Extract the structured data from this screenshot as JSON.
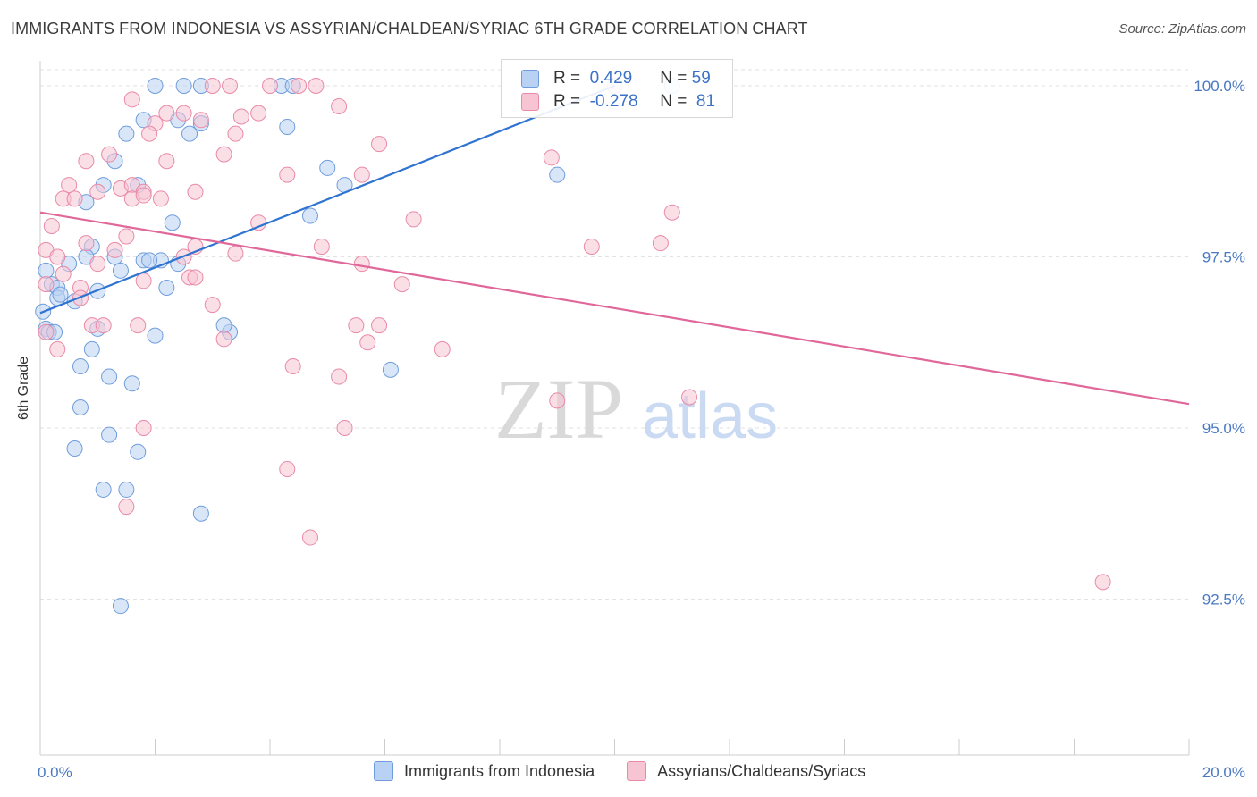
{
  "title": "IMMIGRANTS FROM INDONESIA VS ASSYRIAN/CHALDEAN/SYRIAC 6TH GRADE CORRELATION CHART",
  "source": "Source: ZipAtlas.com",
  "watermark": {
    "zip": "ZIP",
    "atlas": "atlas"
  },
  "legend": {
    "rows": [
      {
        "r_label": "R =",
        "r_value": "0.429",
        "n_label": "N =",
        "n_value": "59"
      },
      {
        "r_label": "R =",
        "r_value": "-0.278",
        "n_label": "N =",
        "n_value": "81"
      }
    ]
  },
  "colors": {
    "blue_fill": "#b9d1f3",
    "blue_stroke": "#6f9ddc",
    "blue_line": "#2f74d0",
    "pink_fill": "#f7c4d3",
    "pink_stroke": "#e98aa8",
    "pink_line": "#e0679a",
    "tick_label": "#4a78c2"
  },
  "chart_data": {
    "type": "scatter",
    "title": "IMMIGRANTS FROM INDONESIA VS ASSYRIAN/CHALDEAN/SYRIAC 6TH GRADE CORRELATION CHART",
    "xlabel": "",
    "ylabel": "6th Grade",
    "xlim": [
      0,
      20
    ],
    "ylim": [
      90.2,
      100.7
    ],
    "x_tick_labels": [
      {
        "value": 0,
        "label": "0.0%"
      },
      {
        "value": 20,
        "label": "20.0%"
      }
    ],
    "y_tick_labels": [
      {
        "value": 100.0,
        "label": "100.0%"
      },
      {
        "value": 97.5,
        "label": "97.5%"
      },
      {
        "value": 95.0,
        "label": "95.0%"
      },
      {
        "value": 92.5,
        "label": "92.5%"
      }
    ],
    "grid": true,
    "legend_position": "top-center",
    "series": [
      {
        "name": "Immigrants from Indonesia",
        "color": "blue",
        "trend": {
          "x": [
            0,
            10
          ],
          "y": [
            96.68,
            100.0
          ]
        },
        "points": [
          [
            2.0,
            100.0
          ],
          [
            2.5,
            100.0
          ],
          [
            2.8,
            100.0
          ],
          [
            4.2,
            100.0
          ],
          [
            4.4,
            100.0
          ],
          [
            11.0,
            100.0
          ],
          [
            1.8,
            99.5
          ],
          [
            2.4,
            99.5
          ],
          [
            2.8,
            99.45
          ],
          [
            4.3,
            99.4
          ],
          [
            1.5,
            99.3
          ],
          [
            2.6,
            99.3
          ],
          [
            1.3,
            98.9
          ],
          [
            5.0,
            98.8
          ],
          [
            9.0,
            98.7
          ],
          [
            1.1,
            98.55
          ],
          [
            1.7,
            98.55
          ],
          [
            5.3,
            98.55
          ],
          [
            0.8,
            98.3
          ],
          [
            2.3,
            98.0
          ],
          [
            4.7,
            98.1
          ],
          [
            0.9,
            97.65
          ],
          [
            0.8,
            97.5
          ],
          [
            1.3,
            97.5
          ],
          [
            1.8,
            97.45
          ],
          [
            2.1,
            97.45
          ],
          [
            0.1,
            97.3
          ],
          [
            0.5,
            97.4
          ],
          [
            1.4,
            97.3
          ],
          [
            0.2,
            97.1
          ],
          [
            0.3,
            97.05
          ],
          [
            2.2,
            97.05
          ],
          [
            1.0,
            97.0
          ],
          [
            0.3,
            96.9
          ],
          [
            0.6,
            96.85
          ],
          [
            0.05,
            96.7
          ],
          [
            0.1,
            96.45
          ],
          [
            0.15,
            96.4
          ],
          [
            1.0,
            96.45
          ],
          [
            3.3,
            96.4
          ],
          [
            2.0,
            96.35
          ],
          [
            0.9,
            96.15
          ],
          [
            0.7,
            95.9
          ],
          [
            6.1,
            95.85
          ],
          [
            1.2,
            95.75
          ],
          [
            1.6,
            95.65
          ],
          [
            0.7,
            95.3
          ],
          [
            1.2,
            94.9
          ],
          [
            0.6,
            94.7
          ],
          [
            1.7,
            94.65
          ],
          [
            1.1,
            94.1
          ],
          [
            1.5,
            94.1
          ],
          [
            2.8,
            93.75
          ],
          [
            1.4,
            92.4
          ],
          [
            0.25,
            96.4
          ],
          [
            0.35,
            96.95
          ],
          [
            1.9,
            97.45
          ],
          [
            2.4,
            97.4
          ],
          [
            3.2,
            96.5
          ]
        ]
      },
      {
        "name": "Assyrians/Chaldeans/Syriacs",
        "color": "pink",
        "trend": {
          "x": [
            0,
            20
          ],
          "y": [
            98.15,
            95.35
          ]
        },
        "points": [
          [
            3.0,
            100.0
          ],
          [
            3.3,
            100.0
          ],
          [
            4.0,
            100.0
          ],
          [
            4.5,
            100.0
          ],
          [
            4.8,
            100.0
          ],
          [
            10.0,
            100.0
          ],
          [
            1.6,
            99.8
          ],
          [
            2.2,
            99.6
          ],
          [
            2.5,
            99.6
          ],
          [
            3.5,
            99.55
          ],
          [
            3.8,
            99.6
          ],
          [
            5.2,
            99.7
          ],
          [
            2.0,
            99.45
          ],
          [
            2.8,
            99.5
          ],
          [
            1.9,
            99.3
          ],
          [
            3.4,
            99.3
          ],
          [
            5.9,
            99.15
          ],
          [
            1.2,
            99.0
          ],
          [
            3.2,
            99.0
          ],
          [
            8.9,
            98.95
          ],
          [
            0.8,
            98.9
          ],
          [
            2.2,
            98.9
          ],
          [
            4.3,
            98.7
          ],
          [
            5.6,
            98.7
          ],
          [
            0.5,
            98.55
          ],
          [
            1.0,
            98.45
          ],
          [
            1.4,
            98.5
          ],
          [
            1.6,
            98.55
          ],
          [
            1.8,
            98.45
          ],
          [
            2.7,
            98.45
          ],
          [
            0.4,
            98.35
          ],
          [
            0.6,
            98.35
          ],
          [
            1.6,
            98.35
          ],
          [
            1.8,
            98.4
          ],
          [
            2.1,
            98.35
          ],
          [
            11.0,
            98.15
          ],
          [
            6.5,
            98.05
          ],
          [
            3.8,
            98.0
          ],
          [
            0.2,
            97.95
          ],
          [
            1.5,
            97.8
          ],
          [
            0.8,
            97.7
          ],
          [
            10.8,
            97.7
          ],
          [
            2.7,
            97.65
          ],
          [
            4.9,
            97.65
          ],
          [
            9.6,
            97.65
          ],
          [
            0.1,
            97.6
          ],
          [
            1.3,
            97.6
          ],
          [
            3.4,
            97.55
          ],
          [
            0.3,
            97.5
          ],
          [
            2.5,
            97.5
          ],
          [
            5.6,
            97.4
          ],
          [
            1.0,
            97.4
          ],
          [
            0.4,
            97.25
          ],
          [
            2.6,
            97.2
          ],
          [
            1.8,
            97.15
          ],
          [
            2.7,
            97.2
          ],
          [
            6.3,
            97.1
          ],
          [
            0.1,
            97.1
          ],
          [
            0.7,
            97.05
          ],
          [
            3.0,
            96.8
          ],
          [
            0.7,
            96.9
          ],
          [
            0.9,
            96.5
          ],
          [
            1.1,
            96.5
          ],
          [
            1.7,
            96.5
          ],
          [
            5.5,
            96.5
          ],
          [
            5.9,
            96.5
          ],
          [
            0.1,
            96.4
          ],
          [
            3.2,
            96.3
          ],
          [
            5.7,
            96.25
          ],
          [
            0.3,
            96.15
          ],
          [
            7.0,
            96.15
          ],
          [
            4.4,
            95.9
          ],
          [
            5.2,
            95.75
          ],
          [
            9.0,
            95.4
          ],
          [
            11.3,
            95.45
          ],
          [
            1.8,
            95.0
          ],
          [
            5.3,
            95.0
          ],
          [
            4.3,
            94.4
          ],
          [
            1.5,
            93.85
          ],
          [
            4.7,
            93.4
          ],
          [
            18.5,
            92.75
          ]
        ]
      }
    ]
  },
  "bottom_legend": [
    {
      "label": "Immigrants from Indonesia",
      "color": "blue"
    },
    {
      "label": "Assyrians/Chaldeans/Syriacs",
      "color": "pink"
    }
  ]
}
